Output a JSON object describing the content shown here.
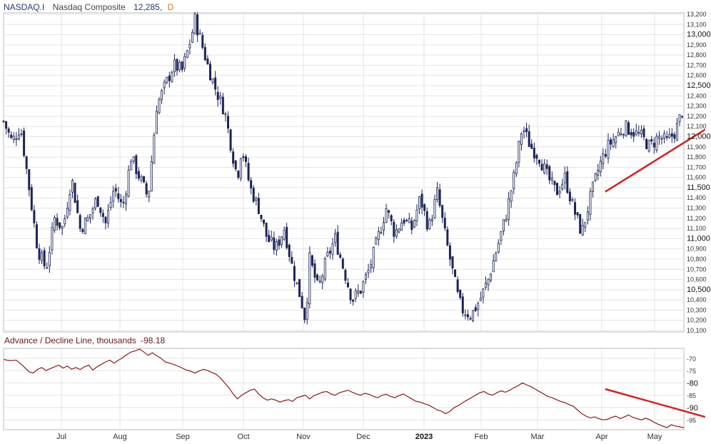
{
  "header": {
    "symbol": "NASDAQ.I",
    "name": "Nasdaq Composite",
    "last": "12,285,",
    "period": "D"
  },
  "lower_header": {
    "title": "Advance / Decline Line, thousands",
    "last": "-98.18"
  },
  "colors": {
    "candle": "#1b2458",
    "line": "#8b1a1a",
    "trend": "#d82020",
    "grid": "#e4e4e4",
    "header_blue": "#1f3a7a",
    "header_orange": "#d9741c"
  },
  "chart_data": [
    {
      "type": "candlestick",
      "title": "Nasdaq Composite",
      "ylim": [
        10100,
        13200
      ],
      "y_ticks": [
        10100,
        10200,
        10300,
        10400,
        10500,
        10600,
        10700,
        10800,
        10900,
        11000,
        11100,
        11200,
        11300,
        11400,
        11500,
        11600,
        11700,
        11800,
        11900,
        12000,
        12100,
        12200,
        12300,
        12400,
        12500,
        12600,
        12700,
        12800,
        12900,
        13000,
        13100,
        13200
      ],
      "y_tick_labels": [
        "10,100",
        "10,200",
        "10,300",
        "10,400",
        "10,500",
        "10,600",
        "10,700",
        "10,800",
        "10,900",
        "11,000",
        "11,100",
        "11,200",
        "11,300",
        "11,400",
        "11,500",
        "11,600",
        "11,700",
        "11,800",
        "11,900",
        "12,000",
        "12,100",
        "12,200",
        "12,300",
        "12,400",
        "12,500",
        "12,600",
        "12,700",
        "12,800",
        "12,900",
        "13,000",
        "13,100",
        "13,200"
      ],
      "y_bold_labels": [
        "10,500",
        "11,000",
        "11,500",
        "12,000",
        "12,500",
        "13,000"
      ],
      "x_labels": [
        "Jul",
        "Aug",
        "Sep",
        "Oct",
        "Nov",
        "Dec",
        "2023",
        "Feb",
        "Mar",
        "Apr",
        "May"
      ],
      "x_bold_labels": [
        "2023"
      ],
      "close_path": [
        [
          0,
          12150
        ],
        [
          4,
          11950
        ],
        [
          8,
          12100
        ],
        [
          12,
          11500
        ],
        [
          16,
          10900
        ],
        [
          20,
          10700
        ],
        [
          24,
          11200
        ],
        [
          28,
          11100
        ],
        [
          32,
          11600
        ],
        [
          36,
          11100
        ],
        [
          40,
          11200
        ],
        [
          44,
          11400
        ],
        [
          48,
          11150
        ],
        [
          52,
          11500
        ],
        [
          56,
          11300
        ],
        [
          60,
          11800
        ],
        [
          64,
          11600
        ],
        [
          68,
          11400
        ],
        [
          72,
          12300
        ],
        [
          76,
          12500
        ],
        [
          80,
          12700
        ],
        [
          84,
          12650
        ],
        [
          88,
          12950
        ],
        [
          90,
          13150
        ],
        [
          92,
          13000
        ],
        [
          96,
          12700
        ],
        [
          100,
          12450
        ],
        [
          104,
          12250
        ],
        [
          108,
          11800
        ],
        [
          110,
          11600
        ],
        [
          112,
          11900
        ],
        [
          116,
          11500
        ],
        [
          120,
          11300
        ],
        [
          124,
          11000
        ],
        [
          128,
          10900
        ],
        [
          132,
          11100
        ],
        [
          134,
          10900
        ],
        [
          136,
          10700
        ],
        [
          140,
          10400
        ],
        [
          142,
          10200
        ],
        [
          144,
          10800
        ],
        [
          148,
          10500
        ],
        [
          152,
          10800
        ],
        [
          156,
          11000
        ],
        [
          160,
          10700
        ],
        [
          164,
          10400
        ],
        [
          168,
          10500
        ],
        [
          172,
          10700
        ],
        [
          176,
          11000
        ],
        [
          180,
          11300
        ],
        [
          184,
          11050
        ],
        [
          188,
          11200
        ],
        [
          192,
          11100
        ],
        [
          196,
          11400
        ],
        [
          200,
          11100
        ],
        [
          204,
          11450
        ],
        [
          208,
          11000
        ],
        [
          212,
          10600
        ],
        [
          214,
          10400
        ],
        [
          216,
          10300
        ],
        [
          220,
          10250
        ],
        [
          224,
          10400
        ],
        [
          228,
          10600
        ],
        [
          232,
          10900
        ],
        [
          236,
          11200
        ],
        [
          240,
          11600
        ],
        [
          244,
          12100
        ],
        [
          248,
          11900
        ],
        [
          252,
          11800
        ],
        [
          256,
          11600
        ],
        [
          260,
          11450
        ],
        [
          264,
          11600
        ],
        [
          268,
          11300
        ],
        [
          272,
          11050
        ],
        [
          276,
          11400
        ],
        [
          280,
          11700
        ],
        [
          284,
          11900
        ],
        [
          288,
          12000
        ],
        [
          292,
          12100
        ],
        [
          296,
          12050
        ],
        [
          300,
          12000
        ],
        [
          304,
          11900
        ],
        [
          308,
          12000
        ],
        [
          312,
          11950
        ],
        [
          316,
          12050
        ],
        [
          320,
          12300
        ]
      ],
      "trendline": [
        [
          283,
          11460
        ],
        [
          330,
          12070
        ]
      ]
    },
    {
      "type": "line",
      "title": "Advance / Decline Line, thousands",
      "ylim": [
        -99,
        -66
      ],
      "y_ticks": [
        -70,
        -75,
        -80,
        -85,
        -90,
        -95
      ],
      "y_tick_labels": [
        "-70",
        "-75",
        "-80",
        "-85",
        "-90",
        "-95"
      ],
      "y_bold_labels": [
        "-80",
        "-90"
      ],
      "last": -98.18,
      "series": [
        {
          "values": [
            [
              0,
              -70.5
            ],
            [
              3,
              -71.0
            ],
            [
              6,
              -70.8
            ],
            [
              9,
              -73.0
            ],
            [
              12,
              -75.5
            ],
            [
              14,
              -76.0
            ],
            [
              16,
              -74.5
            ],
            [
              18,
              -73.8
            ],
            [
              20,
              -75.0
            ],
            [
              22,
              -74.2
            ],
            [
              24,
              -73.5
            ],
            [
              26,
              -72.8
            ],
            [
              28,
              -74.0
            ],
            [
              30,
              -73.2
            ],
            [
              32,
              -74.5
            ],
            [
              34,
              -73.8
            ],
            [
              36,
              -74.6
            ],
            [
              38,
              -73.5
            ],
            [
              40,
              -72.8
            ],
            [
              42,
              -74.8
            ],
            [
              44,
              -73.5
            ],
            [
              46,
              -72.5
            ],
            [
              48,
              -71.5
            ],
            [
              50,
              -70.8
            ],
            [
              52,
              -72.0
            ],
            [
              54,
              -70.8
            ],
            [
              56,
              -69.8
            ],
            [
              58,
              -68.5
            ],
            [
              60,
              -67.5
            ],
            [
              62,
              -67.0
            ],
            [
              64,
              -66.3
            ],
            [
              66,
              -67.5
            ],
            [
              68,
              -68.8
            ],
            [
              70,
              -67.8
            ],
            [
              72,
              -69.0
            ],
            [
              74,
              -70.0
            ],
            [
              76,
              -71.5
            ],
            [
              78,
              -72.0
            ],
            [
              80,
              -72.5
            ],
            [
              82,
              -73.2
            ],
            [
              84,
              -74.0
            ],
            [
              86,
              -74.8
            ],
            [
              88,
              -75.3
            ],
            [
              90,
              -76.0
            ],
            [
              92,
              -75.2
            ],
            [
              94,
              -74.5
            ],
            [
              96,
              -75.0
            ],
            [
              98,
              -75.8
            ],
            [
              100,
              -76.5
            ],
            [
              102,
              -78.0
            ],
            [
              104,
              -80.0
            ],
            [
              106,
              -82.0
            ],
            [
              108,
              -84.5
            ],
            [
              110,
              -86.5
            ],
            [
              112,
              -85.0
            ],
            [
              114,
              -84.0
            ],
            [
              116,
              -83.0
            ],
            [
              118,
              -82.5
            ],
            [
              120,
              -84.5
            ],
            [
              122,
              -86.0
            ],
            [
              124,
              -87.0
            ],
            [
              126,
              -86.5
            ],
            [
              128,
              -87.0
            ],
            [
              130,
              -87.8
            ],
            [
              132,
              -87.2
            ],
            [
              134,
              -86.8
            ],
            [
              136,
              -87.5
            ],
            [
              138,
              -86.0
            ],
            [
              140,
              -85.5
            ],
            [
              142,
              -85.0
            ],
            [
              144,
              -86.5
            ],
            [
              146,
              -85.2
            ],
            [
              148,
              -84.5
            ],
            [
              150,
              -83.8
            ],
            [
              152,
              -83.5
            ],
            [
              154,
              -84.5
            ],
            [
              156,
              -85.0
            ],
            [
              158,
              -84.0
            ],
            [
              160,
              -83.5
            ],
            [
              162,
              -83.0
            ],
            [
              164,
              -83.8
            ],
            [
              166,
              -84.5
            ],
            [
              168,
              -85.0
            ],
            [
              170,
              -84.2
            ],
            [
              172,
              -84.7
            ],
            [
              174,
              -85.5
            ],
            [
              176,
              -86.0
            ],
            [
              178,
              -85.0
            ],
            [
              180,
              -84.6
            ],
            [
              182,
              -85.5
            ],
            [
              184,
              -86.0
            ],
            [
              186,
              -85.2
            ],
            [
              188,
              -84.5
            ],
            [
              190,
              -85.5
            ],
            [
              192,
              -86.5
            ],
            [
              194,
              -87.5
            ],
            [
              196,
              -87.8
            ],
            [
              198,
              -88.5
            ],
            [
              200,
              -89.0
            ],
            [
              202,
              -90.0
            ],
            [
              204,
              -91.0
            ],
            [
              206,
              -91.5
            ],
            [
              208,
              -92.5
            ],
            [
              210,
              -91.5
            ],
            [
              212,
              -90.0
            ],
            [
              214,
              -89.2
            ],
            [
              216,
              -88.0
            ],
            [
              218,
              -87.0
            ],
            [
              220,
              -86.0
            ],
            [
              222,
              -85.0
            ],
            [
              224,
              -84.0
            ],
            [
              226,
              -83.5
            ],
            [
              228,
              -84.5
            ],
            [
              230,
              -85.0
            ],
            [
              232,
              -84.0
            ],
            [
              234,
              -83.2
            ],
            [
              236,
              -83.8
            ],
            [
              238,
              -83.0
            ],
            [
              240,
              -82.0
            ],
            [
              242,
              -81.2
            ],
            [
              244,
              -80.0
            ],
            [
              246,
              -80.8
            ],
            [
              248,
              -81.5
            ],
            [
              250,
              -82.5
            ],
            [
              252,
              -83.5
            ],
            [
              254,
              -84.5
            ],
            [
              256,
              -85.5
            ],
            [
              258,
              -86.0
            ],
            [
              260,
              -86.8
            ],
            [
              262,
              -87.5
            ],
            [
              264,
              -88.0
            ],
            [
              266,
              -88.8
            ],
            [
              268,
              -89.5
            ],
            [
              270,
              -91.0
            ],
            [
              272,
              -92.5
            ],
            [
              274,
              -93.5
            ],
            [
              276,
              -94.2
            ],
            [
              278,
              -93.8
            ],
            [
              280,
              -94.5
            ],
            [
              282,
              -95.0
            ],
            [
              284,
              -94.8
            ],
            [
              286,
              -94.0
            ],
            [
              288,
              -93.5
            ],
            [
              290,
              -94.5
            ],
            [
              292,
              -93.8
            ],
            [
              294,
              -93.0
            ],
            [
              296,
              -94.0
            ],
            [
              298,
              -94.5
            ],
            [
              300,
              -95.0
            ],
            [
              302,
              -94.3
            ],
            [
              304,
              -95.0
            ],
            [
              306,
              -96.0
            ],
            [
              308,
              -96.8
            ],
            [
              310,
              -97.5
            ],
            [
              312,
              -98.2
            ],
            [
              314,
              -97.0
            ],
            [
              316,
              -97.5
            ],
            [
              318,
              -97.8
            ],
            [
              320,
              -98.18
            ]
          ]
        }
      ],
      "trendline": [
        [
          283,
          -82.5
        ],
        [
          330,
          -93.8
        ]
      ]
    }
  ]
}
